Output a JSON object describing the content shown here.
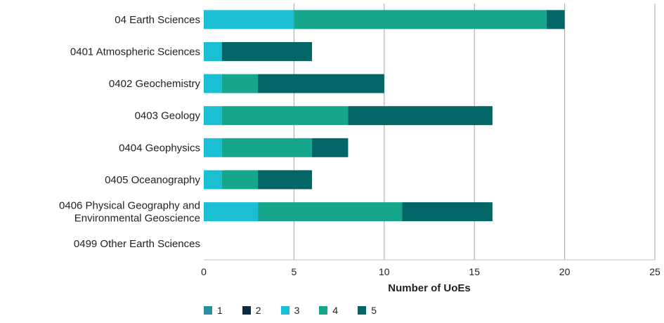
{
  "chart_data": {
    "type": "bar",
    "orientation": "horizontal",
    "stacked": true,
    "categories": [
      [
        "04 Earth Sciences"
      ],
      [
        "0401 Atmospheric Sciences"
      ],
      [
        "0402 Geochemistry"
      ],
      [
        "0403 Geology"
      ],
      [
        "0404 Geophysics"
      ],
      [
        "0405 Oceanography"
      ],
      [
        "0406 Physical Geography and",
        "Environmental Geoscience"
      ],
      [
        "0499 Other Earth Sciences"
      ]
    ],
    "series": [
      {
        "name": "1",
        "color": "#2a8c9c",
        "values": [
          0,
          0,
          0,
          0,
          0,
          0,
          0,
          0
        ]
      },
      {
        "name": "2",
        "color": "#0f2a3a",
        "values": [
          0,
          0,
          0,
          0,
          0,
          0,
          0,
          0
        ]
      },
      {
        "name": "3",
        "color": "#1bbfd3",
        "values": [
          5,
          1,
          1,
          1,
          1,
          1,
          3,
          0
        ]
      },
      {
        "name": "4",
        "color": "#16a68c",
        "values": [
          14,
          0,
          2,
          7,
          5,
          2,
          8,
          0
        ]
      },
      {
        "name": "5",
        "color": "#026666",
        "values": [
          1,
          5,
          7,
          8,
          2,
          3,
          5,
          0
        ]
      }
    ],
    "xlabel": "Number of UoEs",
    "xlim": [
      0,
      25
    ],
    "xticks": [
      0,
      5,
      10,
      15,
      20,
      25
    ],
    "grid": "vertical",
    "legend_position": "bottom-left"
  }
}
